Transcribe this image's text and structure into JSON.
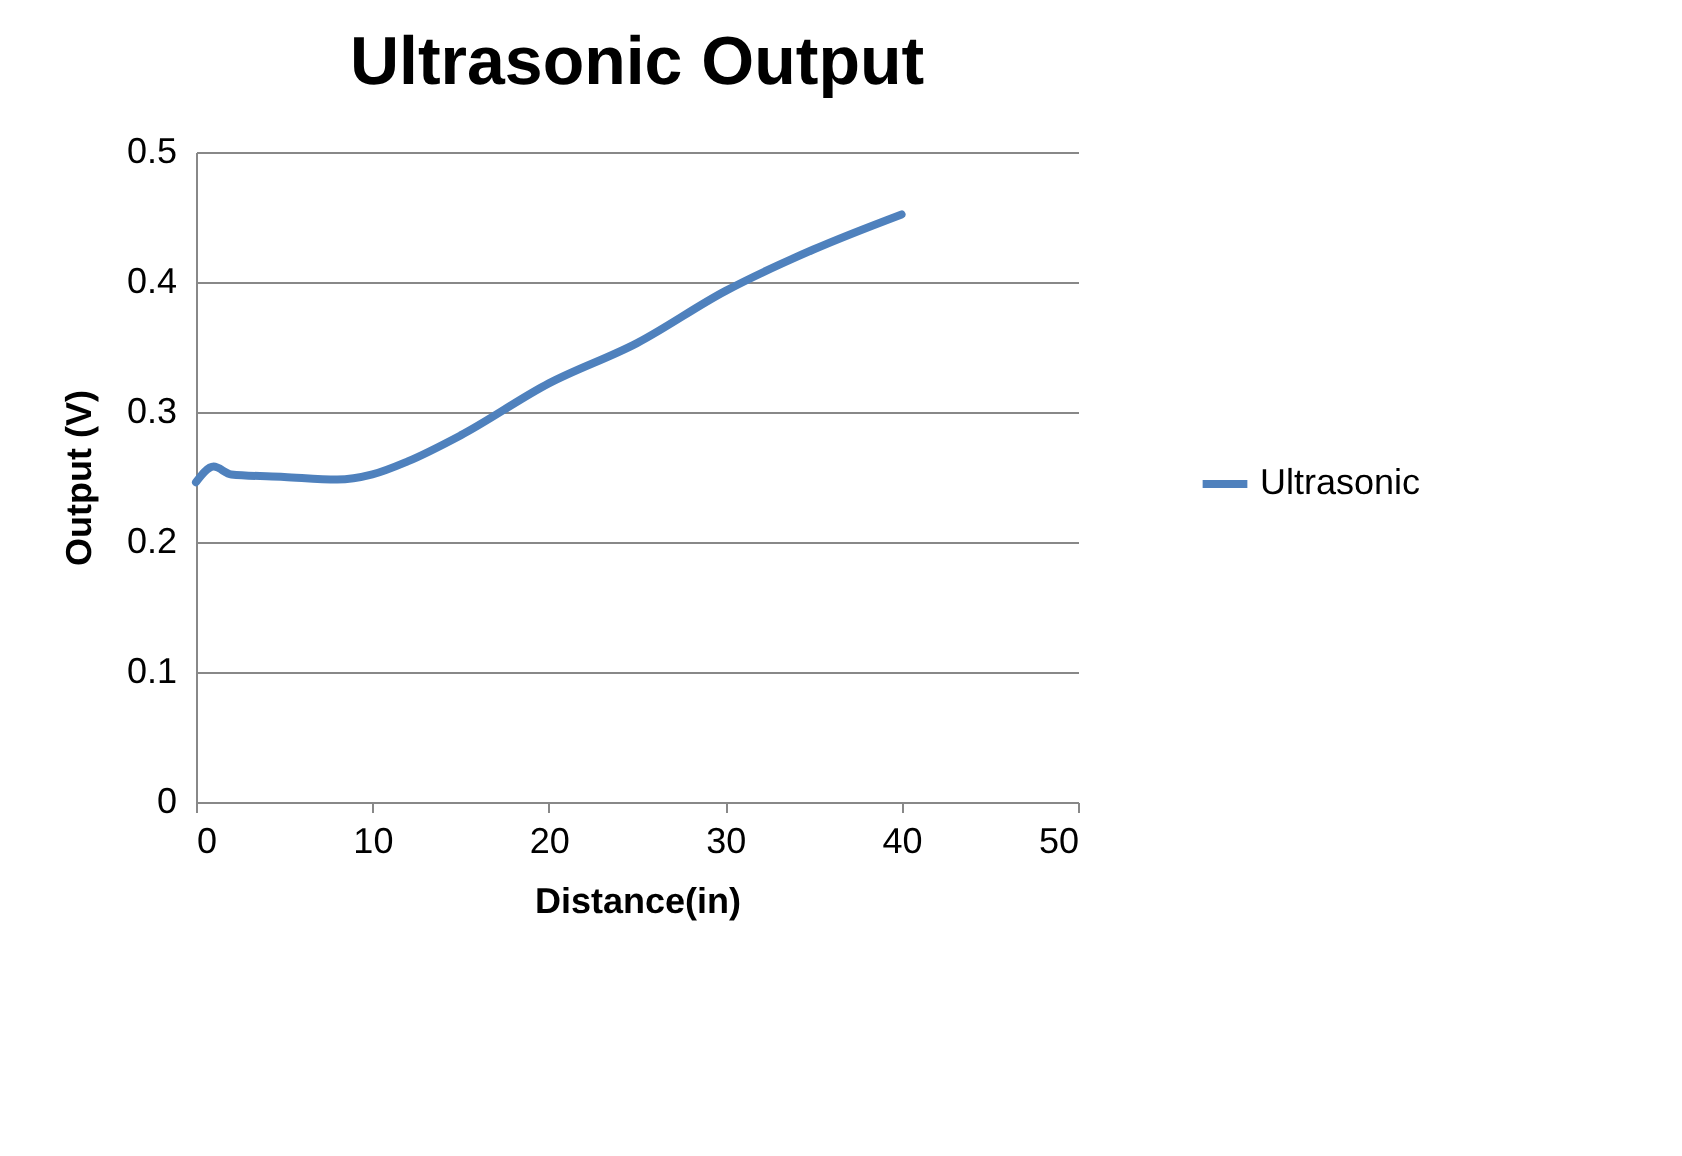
{
  "chart_data": {
    "type": "line",
    "title": "Ultrasonic Output",
    "xlabel": "Distance(in)",
    "ylabel": "Output (V)",
    "xlim": [
      0,
      50
    ],
    "xticks": [
      0,
      10,
      20,
      30,
      40,
      50
    ],
    "ylim": [
      0,
      0.5
    ],
    "yticks": [
      0,
      0.1,
      0.2,
      0.3,
      0.4,
      0.5
    ],
    "grid": "y",
    "legend": "right",
    "marker": "none",
    "line_style": "solid",
    "series": [
      {
        "name": "Ultrasonic",
        "color": "#4f81bd",
        "x": [
          0,
          1,
          2,
          5,
          8,
          10,
          12,
          15,
          20,
          25,
          30,
          35,
          40
        ],
        "values": [
          0.246,
          0.258,
          0.252,
          0.25,
          0.248,
          0.252,
          0.262,
          0.282,
          0.322,
          0.353,
          0.393,
          0.425,
          0.452
        ]
      }
    ]
  }
}
